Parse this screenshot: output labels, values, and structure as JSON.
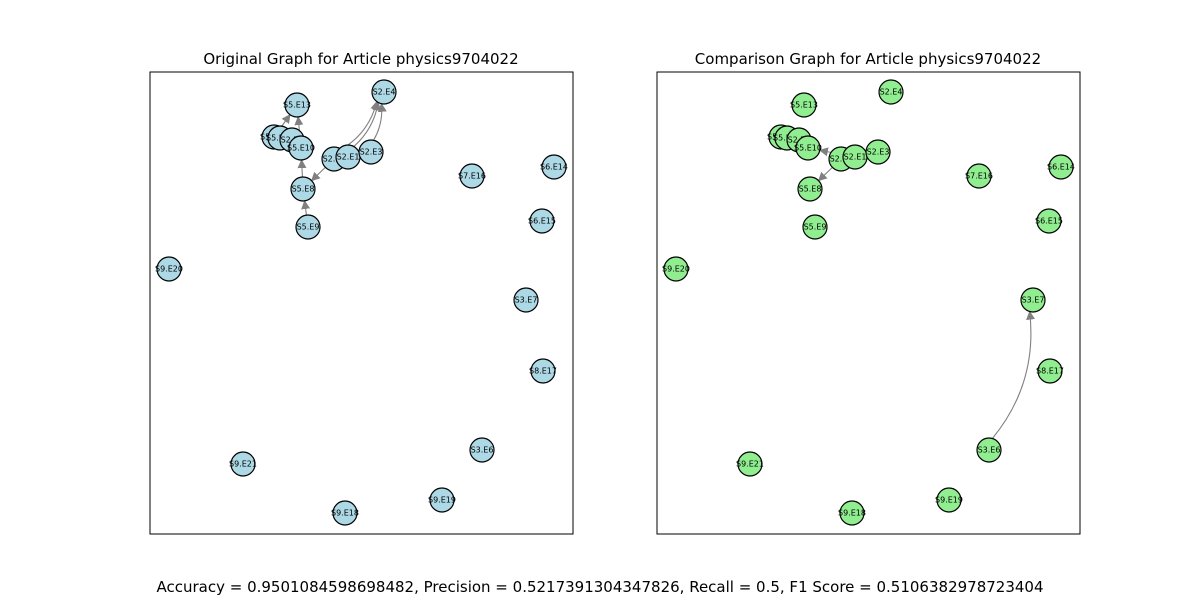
{
  "metrics": "Accuracy = 0.9501084598698482, Precision = 0.5217391304347826, Recall = 0.5, F1 Score = 0.5106382978723404",
  "panels": [
    {
      "title": "Original Graph for Article physics9704022",
      "node_color": "#add8e6",
      "edges": [
        {
          "from": "S5.E9",
          "to": "S5.E8"
        },
        {
          "from": "S5.E8",
          "to": "S5.E10"
        },
        {
          "from": "S5.E10",
          "to": "S5.E13"
        },
        {
          "from": "S2.E2",
          "to": "S5.E8"
        },
        {
          "from": "S2.E1",
          "to": "S2.E4"
        },
        {
          "from": "S2.E3",
          "to": "S2.E4"
        },
        {
          "from": "S2.E2",
          "to": "S2.E4"
        },
        {
          "from": "S5.E12",
          "to": "S5.E13"
        }
      ]
    },
    {
      "title": "Comparison Graph for Article physics9704022",
      "node_color": "#90ee90",
      "edges": [
        {
          "from": "S2.E2",
          "to": "S5.E8"
        },
        {
          "from": "S2.E1",
          "to": "S5.E10"
        },
        {
          "from": "S3.E6",
          "to": "S3.E7"
        }
      ]
    }
  ],
  "nodes": [
    {
      "id": "S2.E4",
      "label": "S2.E4"
    },
    {
      "id": "S5.E13",
      "label": "S5.E13"
    },
    {
      "id": "S5.E12",
      "label": "S5.E12"
    },
    {
      "id": "S5.E11",
      "label": "S5.E11"
    },
    {
      "id": "S2.E5",
      "label": "S2.E5"
    },
    {
      "id": "S5.E10",
      "label": "S5.E10"
    },
    {
      "id": "S2.E2",
      "label": "S2.E2"
    },
    {
      "id": "S2.E1",
      "label": "S2.E1"
    },
    {
      "id": "S2.E3",
      "label": "S2.E3"
    },
    {
      "id": "S5.E8",
      "label": "S5.E8"
    },
    {
      "id": "S5.E9",
      "label": "S5.E9"
    },
    {
      "id": "S7.E16",
      "label": "S7.E16"
    },
    {
      "id": "S6.E14",
      "label": "S6.E14"
    },
    {
      "id": "S6.E15",
      "label": "S6.E15"
    },
    {
      "id": "S9.E20",
      "label": "S9.E20"
    },
    {
      "id": "S3.E7",
      "label": "S3.E7"
    },
    {
      "id": "S8.E17",
      "label": "S8.E17"
    },
    {
      "id": "S3.E6",
      "label": "S3.E6"
    },
    {
      "id": "S9.E21",
      "label": "S9.E21"
    },
    {
      "id": "S9.E19",
      "label": "S9.E19"
    },
    {
      "id": "S9.E18",
      "label": "S9.E18"
    }
  ]
}
